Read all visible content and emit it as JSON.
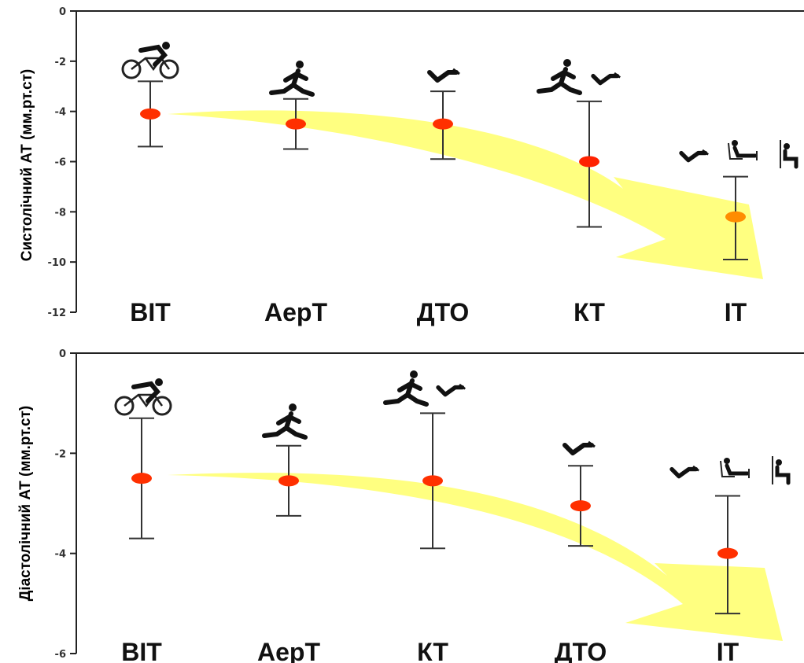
{
  "chart_data": [
    {
      "type": "scatter",
      "ylabel": "Систолічний АТ (мм.рт.ст)",
      "ylim": [
        -12,
        0
      ],
      "yticks": [
        "0",
        "-2",
        "-4",
        "-6",
        "-8",
        "-10",
        "-12"
      ],
      "categories": [
        "ВІТ",
        "АерТ",
        "ДТО",
        "КТ",
        "ІТ"
      ],
      "mean": [
        -4.1,
        -4.5,
        -4.5,
        -6.0,
        -8.2
      ],
      "ci_low": [
        -5.4,
        -5.5,
        -5.9,
        -8.6,
        -9.9
      ],
      "ci_high": [
        -2.8,
        -3.5,
        -3.2,
        -3.6,
        -6.6
      ],
      "point_colors": [
        "#ff3000",
        "#ff3000",
        "#ff3000",
        "#ff2200",
        "#ff8c00"
      ],
      "icons": [
        "cycling-icon",
        "running-icon",
        "grip-icon",
        "running-grip-icon",
        "grip-legpress-wallsit-icon"
      ],
      "grid": false
    },
    {
      "type": "scatter",
      "ylabel": "Діастолічний АТ (мм.рт.ст)",
      "ylim": [
        -6,
        0
      ],
      "yticks": [
        "0",
        "-2",
        "-4",
        "-6"
      ],
      "categories": [
        "ВІТ",
        "АерТ",
        "КТ",
        "ДТО",
        "ІТ"
      ],
      "mean": [
        -2.5,
        -2.55,
        -2.55,
        -3.05,
        -4.0
      ],
      "ci_low": [
        -3.7,
        -3.25,
        -3.9,
        -3.85,
        -5.2
      ],
      "ci_high": [
        -1.3,
        -1.85,
        -1.2,
        -2.25,
        -2.85
      ],
      "point_colors": [
        "#ff3000",
        "#ff3000",
        "#ff3000",
        "#ff3000",
        "#ff3000"
      ],
      "icons": [
        "cycling-icon",
        "running-icon",
        "running-grip-icon",
        "grip-icon",
        "grip-legpress-wallsit-icon"
      ],
      "grid": false
    }
  ]
}
